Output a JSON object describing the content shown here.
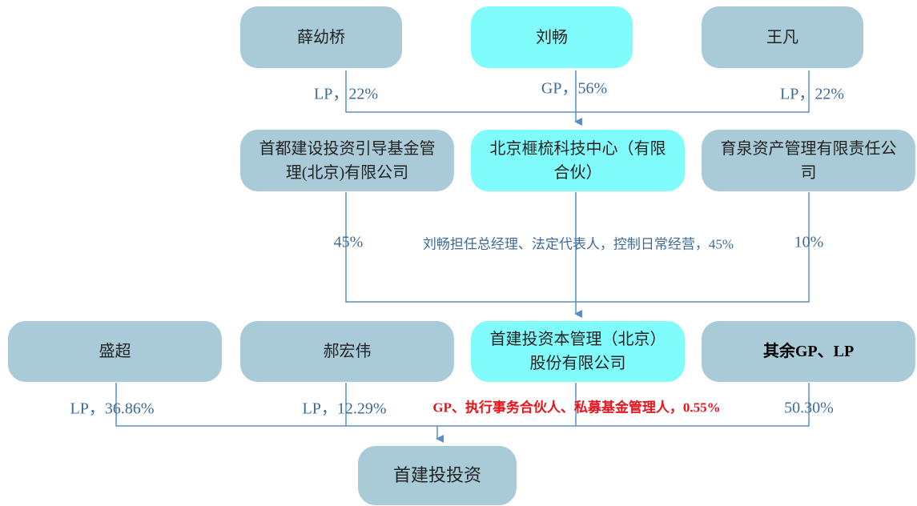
{
  "nodes": [
    {
      "label": "薛幼桥"
    },
    {
      "label": "刘畅"
    },
    {
      "label": "王凡"
    },
    {
      "label": "首都建设投资引导基金管理(北京)有限公司"
    },
    {
      "label": "北京榧梳科技中心（有限合伙）"
    },
    {
      "label": "育泉资产管理有限责任公司"
    },
    {
      "label": "盛超"
    },
    {
      "label": "郝宏伟"
    },
    {
      "label": "首建投资本管理（北京）股份有限公司"
    },
    {
      "label": "其余GP、LP"
    },
    {
      "label": "首建投投资"
    }
  ],
  "edges": [
    {
      "label": "LP，22%"
    },
    {
      "label": "GP，56%"
    },
    {
      "label": "LP，22%"
    },
    {
      "label": "45%"
    },
    {
      "label": "刘畅担任总经理、法定代表人，控制日常经营，45%"
    },
    {
      "label": "10%"
    },
    {
      "label": "LP，36.86%"
    },
    {
      "label": "LP，12.29%"
    },
    {
      "label": "GP、执行事务合伙人、私募基金管理人，0.55%"
    },
    {
      "label": "50.30%"
    }
  ]
}
